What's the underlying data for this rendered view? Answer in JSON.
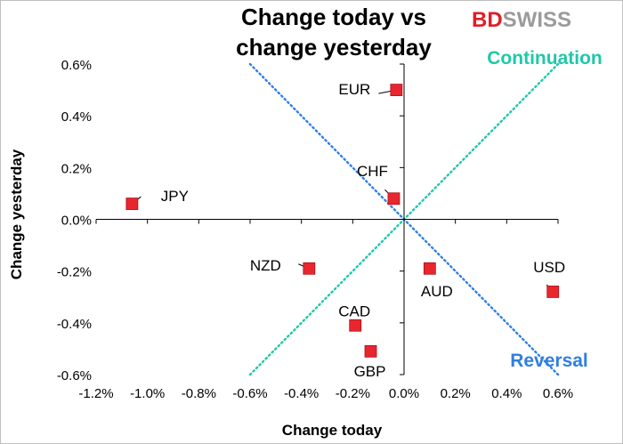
{
  "brand": {
    "bd": "BD",
    "swiss": "SWISS",
    "colors": {
      "red": "#e01e26",
      "gray": "#9b9b9b"
    }
  },
  "chart_data": {
    "type": "scatter",
    "title": [
      "Change today vs",
      "change yesterday"
    ],
    "xlabel": "Change today",
    "ylabel": "Change yesterday",
    "xlim": [
      -1.2,
      0.6
    ],
    "ylim": [
      -0.6,
      0.6
    ],
    "x_ticks": [
      -1.2,
      -1.0,
      -0.8,
      -0.6,
      -0.4,
      -0.2,
      0.0,
      0.2,
      0.4,
      0.6
    ],
    "y_ticks": [
      -0.6,
      -0.4,
      -0.2,
      0.0,
      0.2,
      0.4,
      0.6
    ],
    "tick_format": "percent_1dp",
    "points": [
      {
        "label": "EUR",
        "x": -0.03,
        "y": 0.5
      },
      {
        "label": "CHF",
        "x": -0.04,
        "y": 0.08
      },
      {
        "label": "JPY",
        "x": -1.06,
        "y": 0.06
      },
      {
        "label": "NZD",
        "x": -0.37,
        "y": -0.19
      },
      {
        "label": "AUD",
        "x": 0.1,
        "y": -0.19
      },
      {
        "label": "USD",
        "x": 0.58,
        "y": -0.28
      },
      {
        "label": "CAD",
        "x": -0.19,
        "y": -0.41
      },
      {
        "label": "GBP",
        "x": -0.13,
        "y": -0.51
      }
    ],
    "reference_lines": [
      {
        "name": "Continuation",
        "from": [
          -0.6,
          -0.6
        ],
        "to": [
          0.6,
          0.6
        ],
        "color": "#1ec8a8"
      },
      {
        "name": "Reversal",
        "from": [
          -0.6,
          0.6
        ],
        "to": [
          0.6,
          -0.6
        ],
        "color": "#2f7fe0"
      }
    ],
    "marker_color": "#e8262e"
  }
}
